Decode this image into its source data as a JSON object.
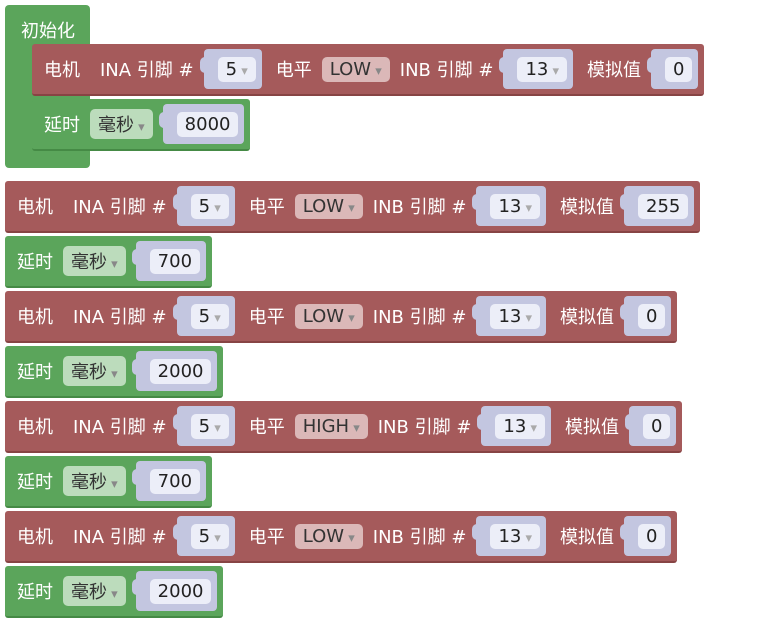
{
  "init": {
    "title": "初始化",
    "body": [
      {
        "kind": "motor",
        "label": "电机",
        "ina_label": "INA 引脚 #",
        "ina": 5,
        "level_label": "电平",
        "level": "LOW",
        "inb_label": "INB 引脚 #",
        "inb": 13,
        "analog_label": "模拟值",
        "analog": 0
      },
      {
        "kind": "delay",
        "label": "延时",
        "unit": "毫秒",
        "value": 8000
      }
    ]
  },
  "program": [
    {
      "kind": "motor",
      "label": "电机",
      "ina_label": "INA 引脚 #",
      "ina": 5,
      "level_label": "电平",
      "level": "LOW",
      "inb_label": "INB 引脚 #",
      "inb": 13,
      "analog_label": "模拟值",
      "analog": 255
    },
    {
      "kind": "delay",
      "label": "延时",
      "unit": "毫秒",
      "value": 700
    },
    {
      "kind": "motor",
      "label": "电机",
      "ina_label": "INA 引脚 #",
      "ina": 5,
      "level_label": "电平",
      "level": "LOW",
      "inb_label": "INB 引脚 #",
      "inb": 13,
      "analog_label": "模拟值",
      "analog": 0
    },
    {
      "kind": "delay",
      "label": "延时",
      "unit": "毫秒",
      "value": 2000
    },
    {
      "kind": "motor",
      "label": "电机",
      "ina_label": "INA 引脚 #",
      "ina": 5,
      "level_label": "电平",
      "level": "HIGH",
      "inb_label": "INB 引脚 #",
      "inb": 13,
      "analog_label": "模拟值",
      "analog": 0
    },
    {
      "kind": "delay",
      "label": "延时",
      "unit": "毫秒",
      "value": 700
    },
    {
      "kind": "motor",
      "label": "电机",
      "ina_label": "INA 引脚 #",
      "ina": 5,
      "level_label": "电平",
      "level": "LOW",
      "inb_label": "INB 引脚 #",
      "inb": 13,
      "analog_label": "模拟值",
      "analog": 0
    },
    {
      "kind": "delay",
      "label": "延时",
      "unit": "毫秒",
      "value": 2000
    }
  ]
}
